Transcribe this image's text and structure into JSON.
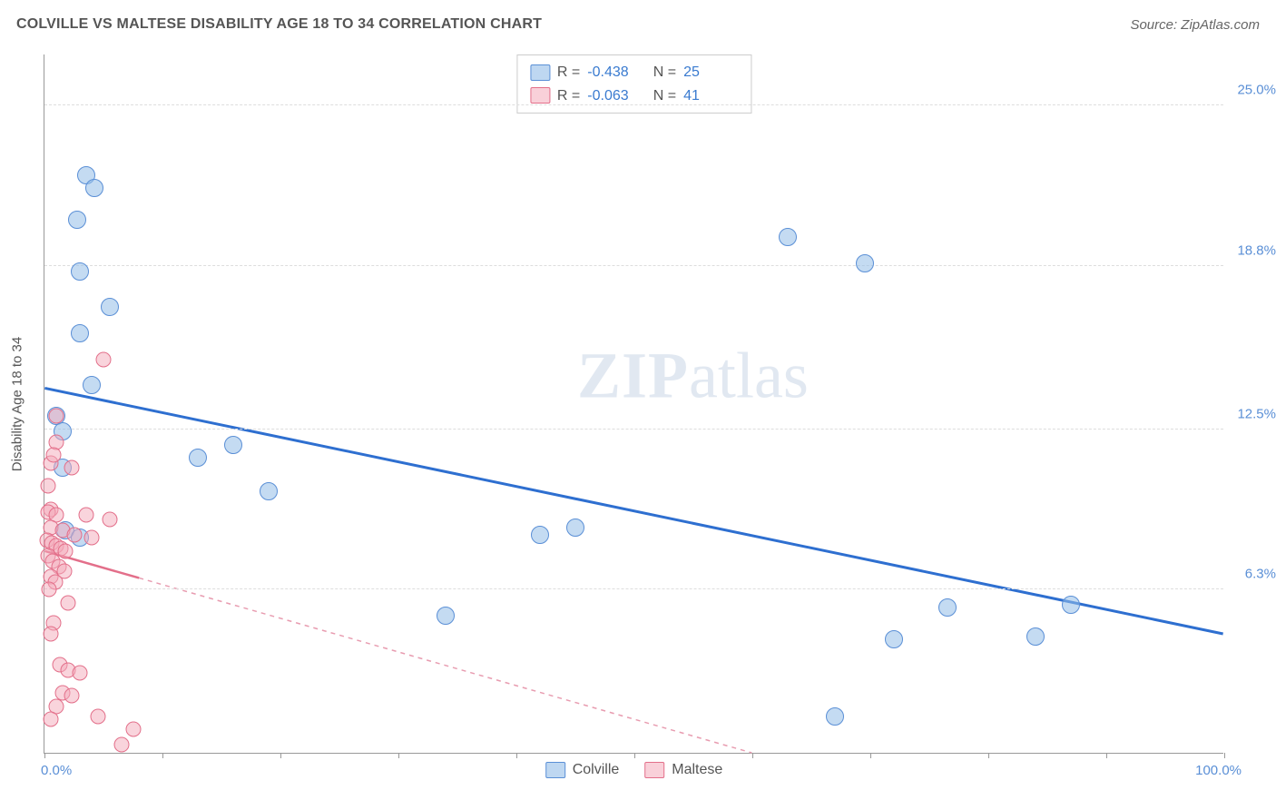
{
  "title": "COLVILLE VS MALTESE DISABILITY AGE 18 TO 34 CORRELATION CHART",
  "source": "Source: ZipAtlas.com",
  "watermark": {
    "bold": "ZIP",
    "rest": "atlas"
  },
  "chart": {
    "type": "scatter",
    "yaxis_title": "Disability Age 18 to 34",
    "xlim": [
      0,
      100
    ],
    "ylim": [
      0,
      27
    ],
    "x_label_min": "0.0%",
    "x_label_max": "100.0%",
    "x_ticks": [
      0,
      10,
      20,
      30,
      40,
      50,
      60,
      70,
      80,
      90,
      100
    ],
    "y_gridlines": [
      {
        "v": 6.3,
        "label": "6.3%"
      },
      {
        "v": 12.5,
        "label": "12.5%"
      },
      {
        "v": 18.8,
        "label": "18.8%"
      },
      {
        "v": 25.0,
        "label": "25.0%"
      }
    ],
    "series": [
      {
        "name": "Colville",
        "marker_color": "#93bde8",
        "marker_border": "#5a8fd6",
        "marker_size": 20,
        "r": "-0.438",
        "n": "25",
        "trend": {
          "x1": 0,
          "y1": 14.1,
          "x2": 100,
          "y2": 4.6,
          "color": "#2e6fd0",
          "width": 3,
          "dash": "none"
        },
        "points": [
          [
            3.5,
            22.3
          ],
          [
            4.2,
            21.8
          ],
          [
            2.8,
            20.6
          ],
          [
            3.0,
            18.6
          ],
          [
            5.5,
            17.2
          ],
          [
            3.0,
            16.2
          ],
          [
            1.0,
            13.0
          ],
          [
            1.5,
            12.4
          ],
          [
            4.0,
            14.2
          ],
          [
            1.8,
            8.6
          ],
          [
            3.0,
            8.3
          ],
          [
            13.0,
            11.4
          ],
          [
            16.0,
            11.9
          ],
          [
            19.0,
            10.1
          ],
          [
            34.0,
            5.3
          ],
          [
            42.0,
            8.4
          ],
          [
            45.0,
            8.7
          ],
          [
            63.0,
            19.9
          ],
          [
            67.0,
            1.4
          ],
          [
            69.5,
            18.9
          ],
          [
            72.0,
            4.4
          ],
          [
            76.5,
            5.6
          ],
          [
            84.0,
            4.5
          ],
          [
            87.0,
            5.7
          ],
          [
            1.5,
            11.0
          ]
        ]
      },
      {
        "name": "Maltese",
        "marker_color": "#f4a9ba",
        "marker_border": "#e36f8a",
        "marker_size": 17,
        "r": "-0.063",
        "n": "41",
        "trend": {
          "x1": 0,
          "y1": 7.8,
          "x2": 60,
          "y2": 0.0,
          "color": "#e89cb0",
          "width": 1.5,
          "dash": "5,5"
        },
        "trend_solid_until": 8,
        "points": [
          [
            5.0,
            15.2
          ],
          [
            1.0,
            13.0
          ],
          [
            1.0,
            12.0
          ],
          [
            0.5,
            11.2
          ],
          [
            2.3,
            11.0
          ],
          [
            0.5,
            9.4
          ],
          [
            0.3,
            9.3
          ],
          [
            1.0,
            9.2
          ],
          [
            3.5,
            9.2
          ],
          [
            5.5,
            9.0
          ],
          [
            0.5,
            8.7
          ],
          [
            1.5,
            8.6
          ],
          [
            2.5,
            8.4
          ],
          [
            4.0,
            8.3
          ],
          [
            0.2,
            8.2
          ],
          [
            0.6,
            8.1
          ],
          [
            1.0,
            8.0
          ],
          [
            1.4,
            7.9
          ],
          [
            1.8,
            7.8
          ],
          [
            0.3,
            7.6
          ],
          [
            0.7,
            7.4
          ],
          [
            1.2,
            7.2
          ],
          [
            1.7,
            7.0
          ],
          [
            0.5,
            6.8
          ],
          [
            0.9,
            6.6
          ],
          [
            0.4,
            6.3
          ],
          [
            0.8,
            5.0
          ],
          [
            0.5,
            4.6
          ],
          [
            1.3,
            3.4
          ],
          [
            2.0,
            3.2
          ],
          [
            3.0,
            3.1
          ],
          [
            1.5,
            2.3
          ],
          [
            2.3,
            2.2
          ],
          [
            1.0,
            1.8
          ],
          [
            0.5,
            1.3
          ],
          [
            4.5,
            1.4
          ],
          [
            6.5,
            0.3
          ],
          [
            7.5,
            0.9
          ],
          [
            2.0,
            5.8
          ],
          [
            0.8,
            11.5
          ],
          [
            0.3,
            10.3
          ]
        ]
      }
    ]
  }
}
